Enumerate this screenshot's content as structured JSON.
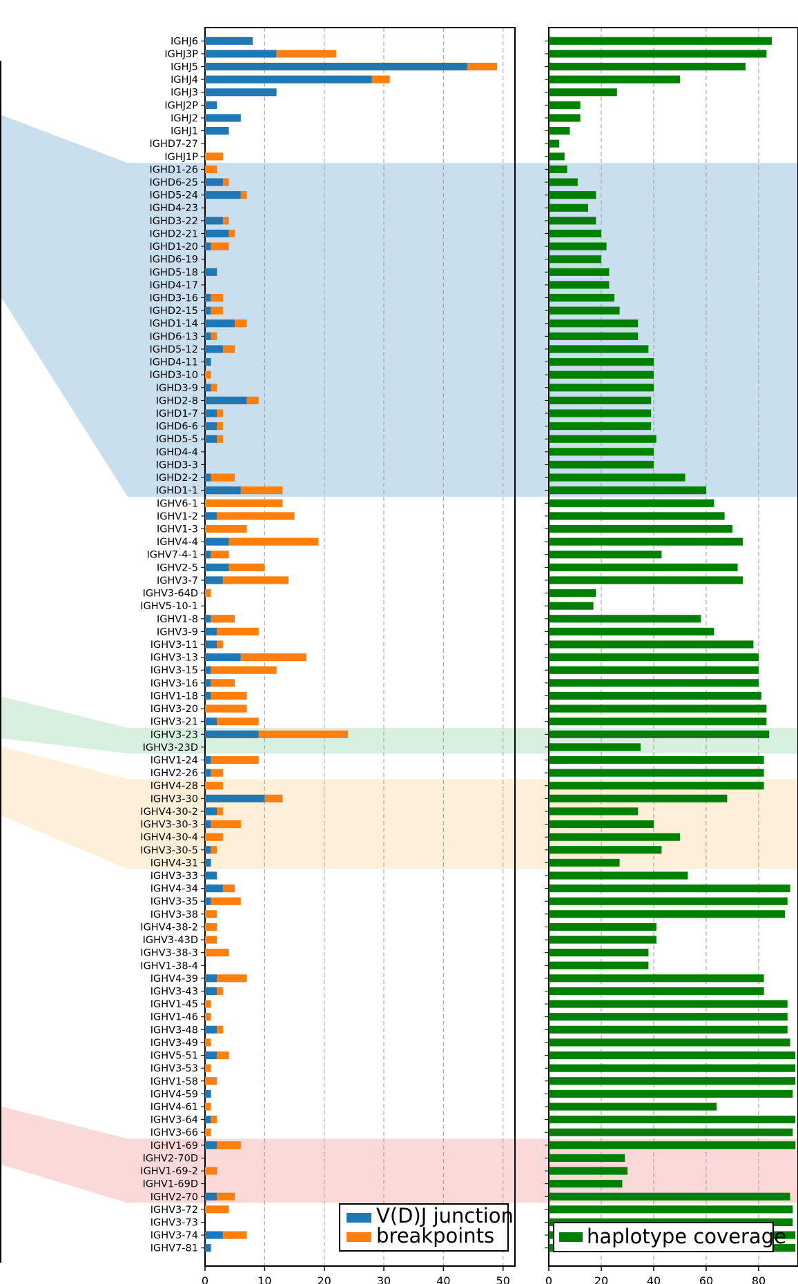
{
  "chart_data": [
    {
      "type": "bar",
      "orientation": "horizontal",
      "stacked": true,
      "title": "",
      "xlabel": "",
      "ylabel": "",
      "xlim": [
        0,
        52
      ],
      "xticks": [
        0,
        10,
        20,
        30,
        40,
        50
      ],
      "grid": "vertical dashed",
      "legend": "bottom-right",
      "colors": {
        "vdj": "#1f77b4",
        "breakpoints": "#ff7f0e"
      },
      "categories": [
        "IGHJ6",
        "IGHJ3P",
        "IGHJ5",
        "IGHJ4",
        "IGHJ3",
        "IGHJ2P",
        "IGHJ2",
        "IGHJ1",
        "IGHD7-27",
        "IGHJ1P",
        "IGHD1-26",
        "IGHD6-25",
        "IGHD5-24",
        "IGHD4-23",
        "IGHD3-22",
        "IGHD2-21",
        "IGHD1-20",
        "IGHD6-19",
        "IGHD5-18",
        "IGHD4-17",
        "IGHD3-16",
        "IGHD2-15",
        "IGHD1-14",
        "IGHD6-13",
        "IGHD5-12",
        "IGHD4-11",
        "IGHD3-10",
        "IGHD3-9",
        "IGHD2-8",
        "IGHD1-7",
        "IGHD6-6",
        "IGHD5-5",
        "IGHD4-4",
        "IGHD3-3",
        "IGHD2-2",
        "IGHD1-1",
        "IGHV6-1",
        "IGHV1-2",
        "IGHV1-3",
        "IGHV4-4",
        "IGHV7-4-1",
        "IGHV2-5",
        "IGHV3-7",
        "IGHV3-64D",
        "IGHV5-10-1",
        "IGHV1-8",
        "IGHV3-9",
        "IGHV3-11",
        "IGHV3-13",
        "IGHV3-15",
        "IGHV3-16",
        "IGHV1-18",
        "IGHV3-20",
        "IGHV3-21",
        "IGHV3-23",
        "IGHV3-23D",
        "IGHV1-24",
        "IGHV2-26",
        "IGHV4-28",
        "IGHV3-30",
        "IGHV4-30-2",
        "IGHV3-30-3",
        "IGHV4-30-4",
        "IGHV3-30-5",
        "IGHV4-31",
        "IGHV3-33",
        "IGHV4-34",
        "IGHV3-35",
        "IGHV3-38",
        "IGHV4-38-2",
        "IGHV3-43D",
        "IGHV3-38-3",
        "IGHV1-38-4",
        "IGHV4-39",
        "IGHV3-43",
        "IGHV1-45",
        "IGHV1-46",
        "IGHV3-48",
        "IGHV3-49",
        "IGHV5-51",
        "IGHV3-53",
        "IGHV1-58",
        "IGHV4-59",
        "IGHV4-61",
        "IGHV3-64",
        "IGHV3-66",
        "IGHV1-69",
        "IGHV2-70D",
        "IGHV1-69-2",
        "IGHV1-69D",
        "IGHV2-70",
        "IGHV3-72",
        "IGHV3-73",
        "IGHV3-74",
        "IGHV7-81"
      ],
      "series": [
        {
          "name": "V(D)J junction",
          "values": [
            8,
            12,
            44,
            28,
            12,
            2,
            6,
            4,
            0,
            0,
            0,
            3,
            6,
            0,
            3,
            4,
            1,
            0,
            2,
            0,
            1,
            1,
            5,
            1,
            3,
            1,
            0,
            1,
            7,
            2,
            2,
            2,
            0,
            0,
            1,
            6,
            0,
            2,
            0,
            4,
            1,
            4,
            3,
            0,
            0,
            1,
            2,
            2,
            6,
            1,
            1,
            1,
            0,
            2,
            9,
            0,
            1,
            1,
            0,
            10,
            2,
            1,
            0,
            1,
            1,
            2,
            3,
            1,
            0,
            0,
            0,
            0,
            0,
            2,
            2,
            0,
            0,
            2,
            0,
            2,
            0,
            0,
            1,
            0,
            1,
            0,
            2,
            0,
            0,
            0,
            2,
            0,
            0,
            3,
            1
          ]
        },
        {
          "name": "breakpoints",
          "values": [
            0,
            10,
            5,
            3,
            0,
            0,
            0,
            0,
            0,
            3,
            2,
            1,
            1,
            0,
            1,
            1,
            3,
            0,
            0,
            0,
            2,
            2,
            2,
            1,
            2,
            0,
            1,
            1,
            2,
            1,
            1,
            1,
            0,
            0,
            4,
            7,
            13,
            13,
            7,
            15,
            3,
            6,
            11,
            1,
            0,
            4,
            7,
            1,
            11,
            11,
            4,
            6,
            7,
            7,
            15,
            0,
            8,
            2,
            3,
            3,
            1,
            5,
            3,
            1,
            0,
            0,
            2,
            5,
            2,
            2,
            2,
            4,
            0,
            5,
            1,
            1,
            1,
            1,
            1,
            2,
            1,
            2,
            0,
            1,
            1,
            1,
            4,
            0,
            2,
            0,
            3,
            4,
            0,
            4,
            0
          ]
        }
      ],
      "highlight_bands": [
        {
          "color": "#9ec5e0",
          "from": "IGHD1-26",
          "to": "IGHD1-1"
        },
        {
          "color": "#b7e4c7",
          "from": "IGHV3-23",
          "to": "IGHV3-23D"
        },
        {
          "color": "#fde3b8",
          "from": "IGHV4-28",
          "to": "IGHV4-31"
        },
        {
          "color": "#f8b9b9",
          "from": "IGHV1-69",
          "to": "IGHV2-70"
        }
      ]
    },
    {
      "type": "bar",
      "orientation": "horizontal",
      "title": "",
      "xlabel": "",
      "ylabel": "",
      "xlim": [
        0,
        95
      ],
      "xticks": [
        0,
        20,
        40,
        60,
        80
      ],
      "grid": "vertical dashed",
      "legend": "bottom-right",
      "color": "#008000",
      "series": [
        {
          "name": "haplotype coverage",
          "values": [
            85,
            83,
            75,
            50,
            26,
            12,
            12,
            8,
            4,
            6,
            7,
            11,
            18,
            15,
            18,
            20,
            22,
            20,
            23,
            23,
            25,
            27,
            34,
            34,
            38,
            40,
            40,
            40,
            39,
            39,
            39,
            41,
            40,
            40,
            52,
            60,
            63,
            67,
            70,
            74,
            43,
            72,
            74,
            18,
            17,
            58,
            63,
            78,
            80,
            80,
            80,
            81,
            83,
            83,
            84,
            35,
            82,
            82,
            82,
            68,
            34,
            40,
            50,
            43,
            27,
            53,
            92,
            91,
            90,
            41,
            41,
            38,
            38,
            82,
            82,
            91,
            91,
            91,
            92,
            94,
            94,
            94,
            93,
            64,
            94,
            93,
            94,
            29,
            30,
            28,
            92,
            93,
            93,
            94,
            94
          ]
        }
      ]
    }
  ],
  "legend_vdj": "V(D)J junction",
  "legend_breakpoints": "breakpoints",
  "legend_coverage": "haplotype coverage"
}
